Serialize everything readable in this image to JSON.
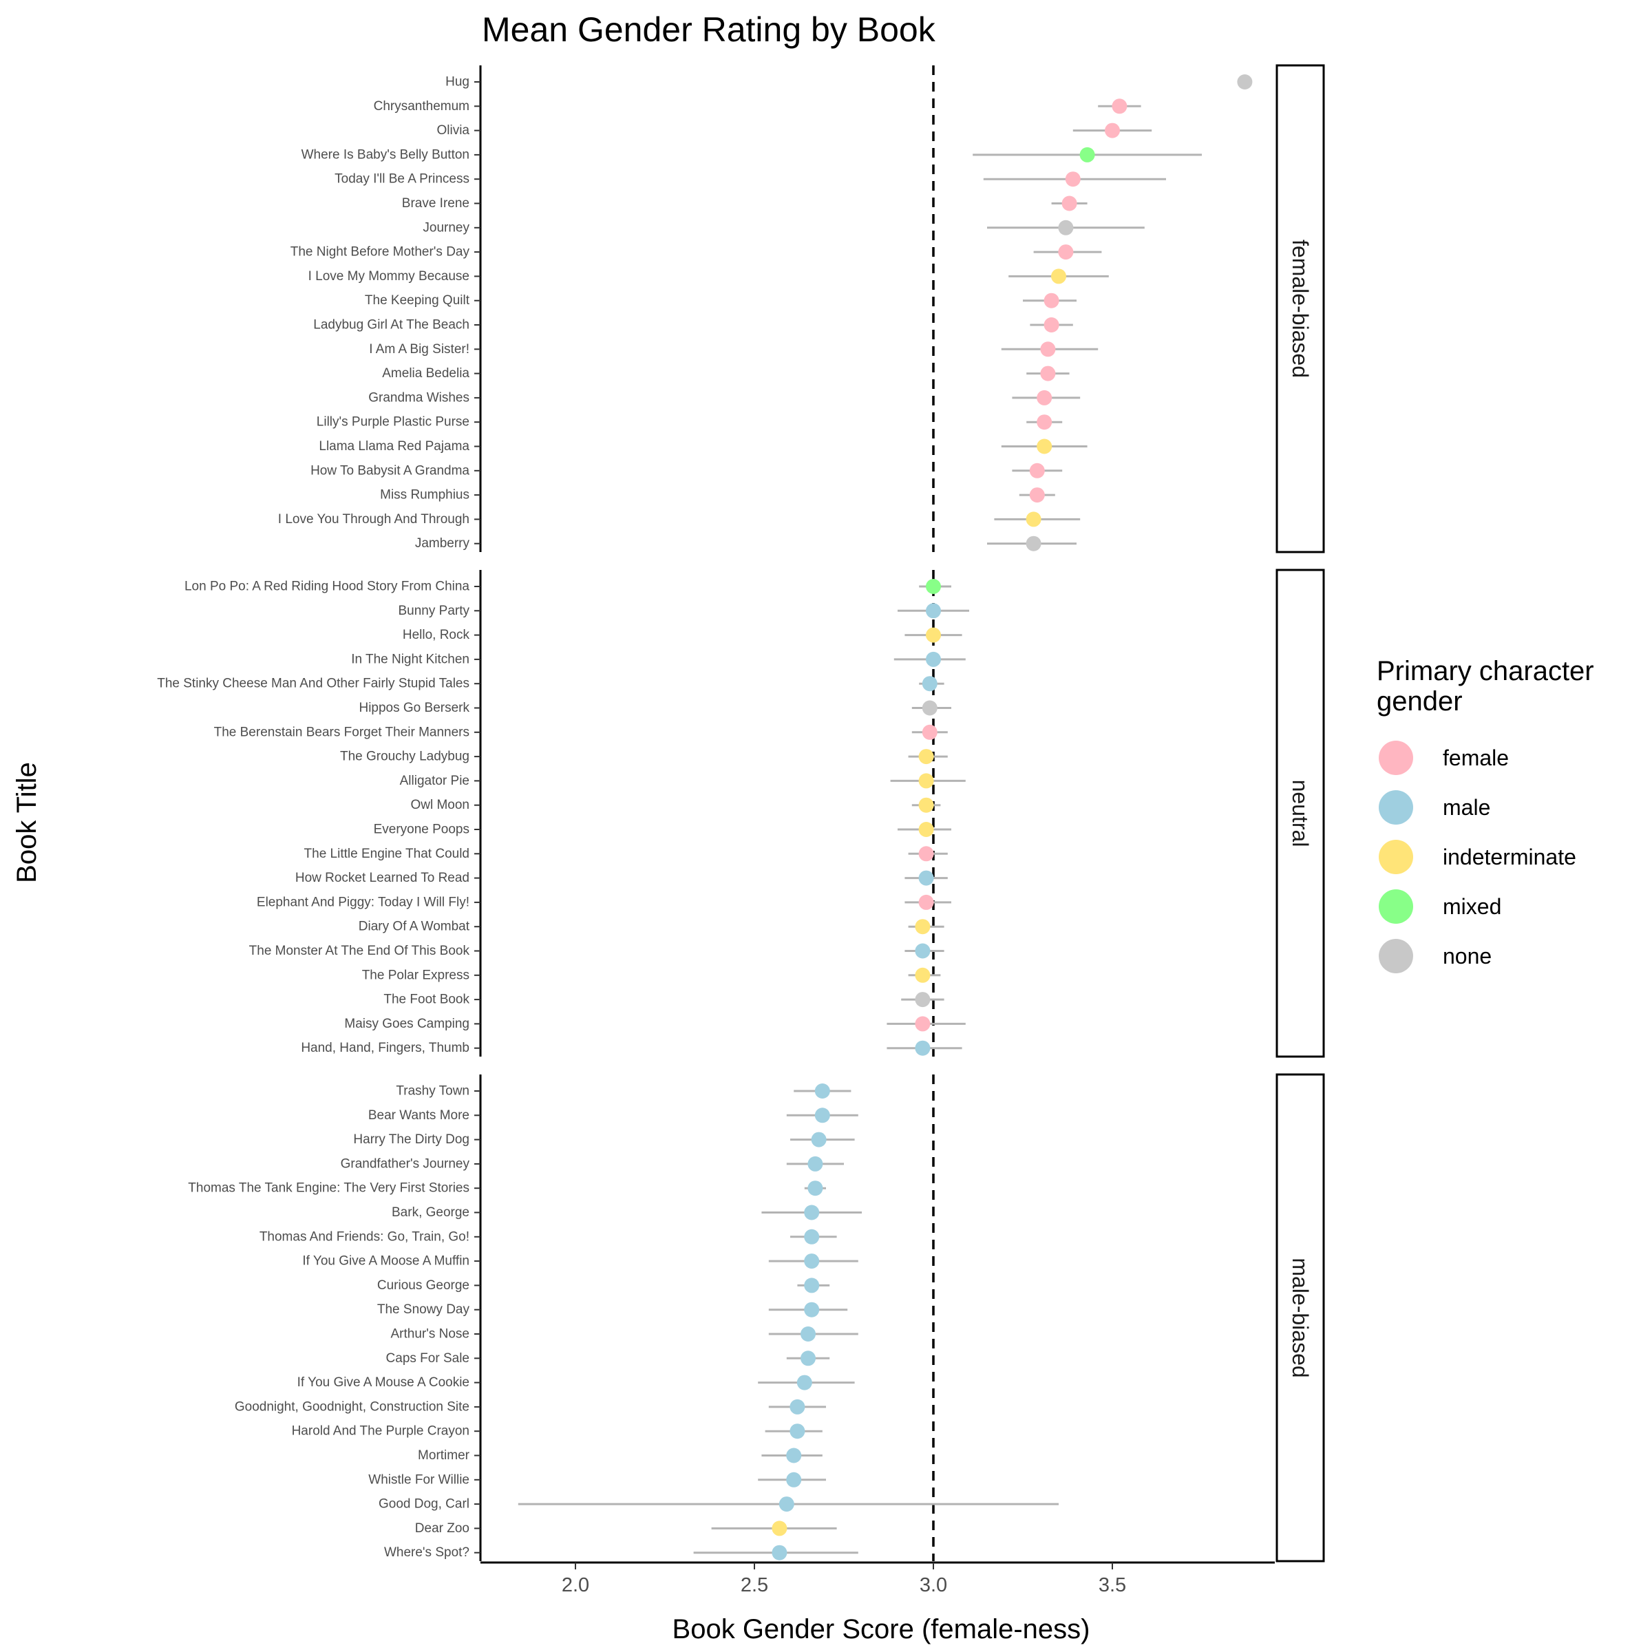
{
  "chart_data": {
    "type": "scatter",
    "title": "Mean Gender Rating by Book",
    "xlabel": "Book Gender Score (female-ness)",
    "ylabel": "Book Title",
    "xlim": [
      1.73,
      3.97
    ],
    "x_ticks": [
      "2.0",
      "2.5",
      "3.0",
      "3.5"
    ],
    "reference_line": 3.0,
    "grid": false,
    "legend": {
      "title_line1": "Primary character",
      "title_line2": "gender",
      "position": "right",
      "entries": [
        {
          "key": "female",
          "label": "female",
          "color": "#FFB6C1"
        },
        {
          "key": "male",
          "label": "male",
          "color": "#9FCFE0"
        },
        {
          "key": "indeterminate",
          "label": "indeterminate",
          "color": "#FFE478"
        },
        {
          "key": "mixed",
          "label": "mixed",
          "color": "#88FF88"
        },
        {
          "key": "none",
          "label": "none",
          "color": "#C8C8C8"
        }
      ]
    },
    "panels": [
      {
        "label": "female-biased",
        "books": [
          {
            "title": "Hug",
            "mean": 3.87,
            "low": 3.87,
            "high": 3.87,
            "gender": "none"
          },
          {
            "title": "Chrysanthemum",
            "mean": 3.52,
            "low": 3.46,
            "high": 3.58,
            "gender": "female"
          },
          {
            "title": "Olivia",
            "mean": 3.5,
            "low": 3.39,
            "high": 3.61,
            "gender": "female"
          },
          {
            "title": "Where Is Baby's Belly Button",
            "mean": 3.43,
            "low": 3.11,
            "high": 3.75,
            "gender": "mixed"
          },
          {
            "title": "Today I'll Be A Princess",
            "mean": 3.39,
            "low": 3.14,
            "high": 3.65,
            "gender": "female"
          },
          {
            "title": "Brave Irene",
            "mean": 3.38,
            "low": 3.33,
            "high": 3.43,
            "gender": "female"
          },
          {
            "title": "Journey",
            "mean": 3.37,
            "low": 3.15,
            "high": 3.59,
            "gender": "none"
          },
          {
            "title": "The Night Before Mother's Day",
            "mean": 3.37,
            "low": 3.28,
            "high": 3.47,
            "gender": "female"
          },
          {
            "title": "I Love My Mommy Because",
            "mean": 3.35,
            "low": 3.21,
            "high": 3.49,
            "gender": "indeterminate"
          },
          {
            "title": "The Keeping Quilt",
            "mean": 3.33,
            "low": 3.25,
            "high": 3.4,
            "gender": "female"
          },
          {
            "title": "Ladybug Girl At The Beach",
            "mean": 3.33,
            "low": 3.27,
            "high": 3.39,
            "gender": "female"
          },
          {
            "title": "I Am A Big Sister!",
            "mean": 3.32,
            "low": 3.19,
            "high": 3.46,
            "gender": "female"
          },
          {
            "title": "Amelia Bedelia",
            "mean": 3.32,
            "low": 3.26,
            "high": 3.38,
            "gender": "female"
          },
          {
            "title": "Grandma Wishes",
            "mean": 3.31,
            "low": 3.22,
            "high": 3.41,
            "gender": "female"
          },
          {
            "title": "Lilly's Purple Plastic Purse",
            "mean": 3.31,
            "low": 3.26,
            "high": 3.36,
            "gender": "female"
          },
          {
            "title": "Llama Llama Red Pajama",
            "mean": 3.31,
            "low": 3.19,
            "high": 3.43,
            "gender": "indeterminate"
          },
          {
            "title": "How To Babysit A Grandma",
            "mean": 3.29,
            "low": 3.22,
            "high": 3.36,
            "gender": "female"
          },
          {
            "title": "Miss Rumphius",
            "mean": 3.29,
            "low": 3.24,
            "high": 3.34,
            "gender": "female"
          },
          {
            "title": "I Love You Through And Through",
            "mean": 3.28,
            "low": 3.17,
            "high": 3.41,
            "gender": "indeterminate"
          },
          {
            "title": "Jamberry",
            "mean": 3.28,
            "low": 3.15,
            "high": 3.4,
            "gender": "none"
          }
        ]
      },
      {
        "label": "neutral",
        "books": [
          {
            "title": "Lon Po Po: A Red Riding Hood Story From China",
            "mean": 3.0,
            "low": 2.96,
            "high": 3.05,
            "gender": "mixed"
          },
          {
            "title": "Bunny Party",
            "mean": 3.0,
            "low": 2.9,
            "high": 3.1,
            "gender": "male"
          },
          {
            "title": "Hello, Rock",
            "mean": 3.0,
            "low": 2.92,
            "high": 3.08,
            "gender": "indeterminate"
          },
          {
            "title": "In The Night Kitchen",
            "mean": 3.0,
            "low": 2.89,
            "high": 3.09,
            "gender": "male"
          },
          {
            "title": "The Stinky Cheese Man And Other Fairly Stupid Tales",
            "mean": 2.99,
            "low": 2.96,
            "high": 3.03,
            "gender": "male"
          },
          {
            "title": "Hippos Go Berserk",
            "mean": 2.99,
            "low": 2.94,
            "high": 3.05,
            "gender": "none"
          },
          {
            "title": "The Berenstain Bears Forget Their Manners",
            "mean": 2.99,
            "low": 2.94,
            "high": 3.04,
            "gender": "female"
          },
          {
            "title": "The Grouchy Ladybug",
            "mean": 2.98,
            "low": 2.93,
            "high": 3.04,
            "gender": "indeterminate"
          },
          {
            "title": "Alligator Pie",
            "mean": 2.98,
            "low": 2.88,
            "high": 3.09,
            "gender": "indeterminate"
          },
          {
            "title": "Owl Moon",
            "mean": 2.98,
            "low": 2.94,
            "high": 3.02,
            "gender": "indeterminate"
          },
          {
            "title": "Everyone Poops",
            "mean": 2.98,
            "low": 2.9,
            "high": 3.05,
            "gender": "indeterminate"
          },
          {
            "title": "The Little Engine That Could",
            "mean": 2.98,
            "low": 2.93,
            "high": 3.04,
            "gender": "female"
          },
          {
            "title": "How Rocket Learned To Read",
            "mean": 2.98,
            "low": 2.92,
            "high": 3.04,
            "gender": "male"
          },
          {
            "title": "Elephant And Piggy: Today I Will Fly!",
            "mean": 2.98,
            "low": 2.92,
            "high": 3.05,
            "gender": "female"
          },
          {
            "title": "Diary Of A Wombat",
            "mean": 2.97,
            "low": 2.93,
            "high": 3.03,
            "gender": "indeterminate"
          },
          {
            "title": "The Monster At The End Of This Book",
            "mean": 2.97,
            "low": 2.92,
            "high": 3.03,
            "gender": "male"
          },
          {
            "title": "The Polar Express",
            "mean": 2.97,
            "low": 2.93,
            "high": 3.02,
            "gender": "indeterminate"
          },
          {
            "title": "The Foot Book",
            "mean": 2.97,
            "low": 2.91,
            "high": 3.03,
            "gender": "none"
          },
          {
            "title": "Maisy Goes Camping",
            "mean": 2.97,
            "low": 2.87,
            "high": 3.09,
            "gender": "female"
          },
          {
            "title": "Hand, Hand, Fingers, Thumb",
            "mean": 2.97,
            "low": 2.87,
            "high": 3.08,
            "gender": "male"
          }
        ]
      },
      {
        "label": "male-biased",
        "books": [
          {
            "title": "Trashy Town",
            "mean": 2.69,
            "low": 2.61,
            "high": 2.77,
            "gender": "male"
          },
          {
            "title": "Bear Wants More",
            "mean": 2.69,
            "low": 2.59,
            "high": 2.79,
            "gender": "male"
          },
          {
            "title": "Harry The Dirty Dog",
            "mean": 2.68,
            "low": 2.6,
            "high": 2.78,
            "gender": "male"
          },
          {
            "title": "Grandfather's Journey",
            "mean": 2.67,
            "low": 2.59,
            "high": 2.75,
            "gender": "male"
          },
          {
            "title": "Thomas The Tank Engine: The Very First Stories",
            "mean": 2.67,
            "low": 2.64,
            "high": 2.7,
            "gender": "male"
          },
          {
            "title": "Bark, George",
            "mean": 2.66,
            "low": 2.52,
            "high": 2.8,
            "gender": "male"
          },
          {
            "title": "Thomas And Friends: Go, Train, Go!",
            "mean": 2.66,
            "low": 2.6,
            "high": 2.73,
            "gender": "male"
          },
          {
            "title": "If You Give A Moose A Muffin",
            "mean": 2.66,
            "low": 2.54,
            "high": 2.79,
            "gender": "male"
          },
          {
            "title": "Curious George",
            "mean": 2.66,
            "low": 2.62,
            "high": 2.71,
            "gender": "male"
          },
          {
            "title": "The Snowy Day",
            "mean": 2.66,
            "low": 2.54,
            "high": 2.76,
            "gender": "male"
          },
          {
            "title": "Arthur's Nose",
            "mean": 2.65,
            "low": 2.54,
            "high": 2.79,
            "gender": "male"
          },
          {
            "title": "Caps For Sale",
            "mean": 2.65,
            "low": 2.59,
            "high": 2.71,
            "gender": "male"
          },
          {
            "title": "If You Give A Mouse A Cookie",
            "mean": 2.64,
            "low": 2.51,
            "high": 2.78,
            "gender": "male"
          },
          {
            "title": "Goodnight, Goodnight, Construction Site",
            "mean": 2.62,
            "low": 2.54,
            "high": 2.7,
            "gender": "male"
          },
          {
            "title": "Harold And The Purple Crayon",
            "mean": 2.62,
            "low": 2.53,
            "high": 2.69,
            "gender": "male"
          },
          {
            "title": "Mortimer",
            "mean": 2.61,
            "low": 2.52,
            "high": 2.69,
            "gender": "male"
          },
          {
            "title": "Whistle For Willie",
            "mean": 2.61,
            "low": 2.51,
            "high": 2.7,
            "gender": "male"
          },
          {
            "title": "Good Dog, Carl",
            "mean": 2.59,
            "low": 1.84,
            "high": 3.35,
            "gender": "male"
          },
          {
            "title": "Dear Zoo",
            "mean": 2.57,
            "low": 2.38,
            "high": 2.73,
            "gender": "indeterminate"
          },
          {
            "title": "Where's Spot?",
            "mean": 2.57,
            "low": 2.33,
            "high": 2.79,
            "gender": "male"
          }
        ]
      }
    ]
  }
}
